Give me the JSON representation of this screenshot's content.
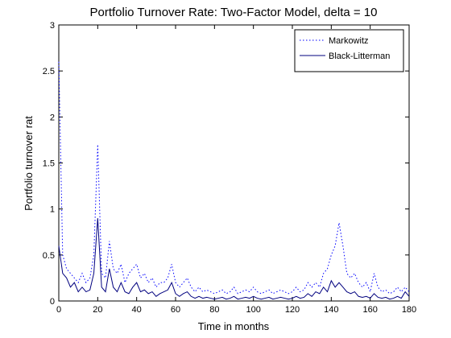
{
  "chart_data": {
    "type": "line",
    "title": "Portfolio Turnover Rate: Two-Factor Model, delta = 10",
    "x_label": "Time in months",
    "y_label": "Portfolio turnover rat",
    "x": [
      0,
      2,
      4,
      6,
      8,
      10,
      12,
      14,
      16,
      18,
      20,
      22,
      24,
      26,
      28,
      30,
      32,
      34,
      36,
      38,
      40,
      42,
      44,
      46,
      48,
      50,
      52,
      54,
      56,
      58,
      60,
      62,
      64,
      66,
      68,
      70,
      72,
      74,
      76,
      78,
      80,
      82,
      84,
      86,
      88,
      90,
      92,
      94,
      96,
      98,
      100,
      102,
      104,
      106,
      108,
      110,
      112,
      114,
      116,
      118,
      120,
      122,
      124,
      126,
      128,
      130,
      132,
      134,
      136,
      138,
      140,
      142,
      144,
      146,
      148,
      150,
      152,
      154,
      156,
      158,
      160,
      162,
      164,
      166,
      168,
      170,
      172,
      174,
      176,
      178,
      180
    ],
    "series": [
      {
        "name": "Markowitz",
        "color": "#0000ff",
        "linestyle": "dotted",
        "values": [
          2.6,
          0.5,
          0.35,
          0.3,
          0.25,
          0.2,
          0.3,
          0.2,
          0.25,
          0.5,
          1.7,
          0.3,
          0.25,
          0.65,
          0.35,
          0.3,
          0.4,
          0.2,
          0.3,
          0.35,
          0.4,
          0.25,
          0.3,
          0.2,
          0.25,
          0.15,
          0.2,
          0.2,
          0.25,
          0.4,
          0.2,
          0.15,
          0.2,
          0.25,
          0.15,
          0.1,
          0.15,
          0.1,
          0.12,
          0.1,
          0.08,
          0.1,
          0.12,
          0.08,
          0.1,
          0.15,
          0.08,
          0.1,
          0.12,
          0.1,
          0.15,
          0.1,
          0.08,
          0.1,
          0.12,
          0.08,
          0.1,
          0.12,
          0.1,
          0.08,
          0.1,
          0.15,
          0.1,
          0.12,
          0.2,
          0.15,
          0.2,
          0.15,
          0.3,
          0.35,
          0.5,
          0.6,
          0.85,
          0.6,
          0.3,
          0.25,
          0.3,
          0.2,
          0.15,
          0.2,
          0.1,
          0.3,
          0.15,
          0.1,
          0.12,
          0.08,
          0.1,
          0.15,
          0.1,
          0.15,
          0.1
        ]
      },
      {
        "name": "Black-Litterman",
        "color": "#00007f",
        "linestyle": "solid",
        "values": [
          0.6,
          0.3,
          0.25,
          0.15,
          0.2,
          0.1,
          0.15,
          0.1,
          0.12,
          0.3,
          0.9,
          0.15,
          0.1,
          0.35,
          0.15,
          0.1,
          0.2,
          0.1,
          0.08,
          0.15,
          0.2,
          0.1,
          0.12,
          0.08,
          0.1,
          0.05,
          0.08,
          0.1,
          0.12,
          0.2,
          0.08,
          0.05,
          0.08,
          0.1,
          0.05,
          0.03,
          0.05,
          0.03,
          0.04,
          0.03,
          0.02,
          0.03,
          0.04,
          0.02,
          0.03,
          0.05,
          0.02,
          0.03,
          0.04,
          0.03,
          0.05,
          0.03,
          0.02,
          0.03,
          0.04,
          0.02,
          0.03,
          0.04,
          0.03,
          0.02,
          0.03,
          0.05,
          0.03,
          0.04,
          0.08,
          0.05,
          0.1,
          0.08,
          0.15,
          0.1,
          0.22,
          0.15,
          0.2,
          0.15,
          0.1,
          0.08,
          0.1,
          0.05,
          0.04,
          0.05,
          0.03,
          0.08,
          0.04,
          0.03,
          0.04,
          0.02,
          0.03,
          0.05,
          0.03,
          0.1,
          0.05
        ]
      }
    ],
    "xlim": [
      0,
      180
    ],
    "ylim": [
      0,
      3
    ],
    "xticks": [
      0,
      20,
      40,
      60,
      80,
      100,
      120,
      140,
      160,
      180
    ],
    "yticks": [
      0,
      0.5,
      1,
      1.5,
      2,
      2.5,
      3
    ],
    "grid": false,
    "legend": "top-right"
  }
}
